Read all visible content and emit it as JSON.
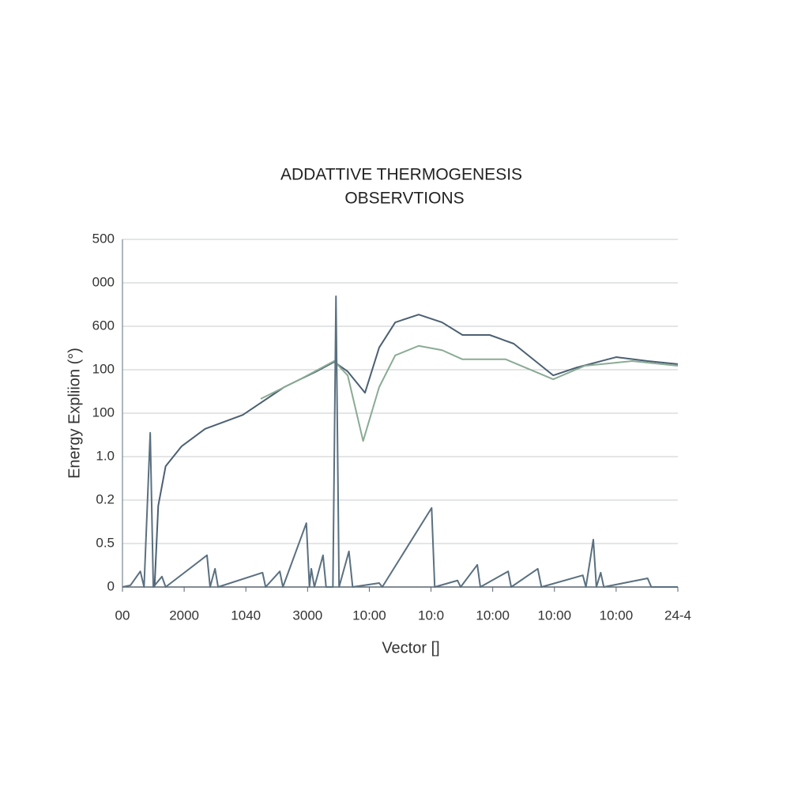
{
  "chart_data": {
    "type": "line",
    "title": [
      "ADDATTIVE THERMOGENESIS",
      "OBSERVTIONS"
    ],
    "x_label": "Vector []",
    "y_label": "Energy Expliion (°)",
    "xlim": [
      0,
      9
    ],
    "xticks": [
      {
        "value": 0,
        "label": "00"
      },
      {
        "value": 1,
        "label": "2000"
      },
      {
        "value": 2,
        "label": "1040"
      },
      {
        "value": 3,
        "label": "3000"
      },
      {
        "value": 4,
        "label": "10:00"
      },
      {
        "value": 5,
        "label": "10:0"
      },
      {
        "value": 6,
        "label": "10:00"
      },
      {
        "value": 7,
        "label": "10:00"
      },
      {
        "value": 8,
        "label": "10:00"
      },
      {
        "value": 9,
        "label": "24-4"
      }
    ],
    "ylim": [
      0,
      8
    ],
    "yticks": [
      0,
      {
        "value": 1,
        "label": "0.5"
      },
      {
        "value": 2,
        "label": "0.2"
      },
      {
        "value": 3,
        "label": "1.0"
      },
      {
        "value": 4,
        "label": "100"
      },
      {
        "value": 5,
        "label": "100"
      },
      {
        "value": 6,
        "label": "600"
      },
      {
        "value": 7,
        "label": "000"
      },
      {
        "value": 8,
        "label": "500"
      }
    ],
    "grid": true,
    "series": [
      {
        "color": "#4b6072",
        "x": [
          0.52,
          0.58,
          0.7,
          0.96,
          1.34,
          1.95,
          2.62,
          3.14,
          3.43,
          3.65,
          3.93,
          4.16,
          4.42,
          4.8,
          5.18,
          5.51,
          5.95,
          6.34,
          6.98,
          7.36,
          8.0,
          8.51,
          9.0
        ],
        "values": [
          0,
          1.87,
          2.78,
          3.24,
          3.64,
          3.96,
          4.6,
          4.96,
          5.18,
          4.96,
          4.47,
          5.51,
          6.09,
          6.27,
          6.09,
          5.8,
          5.8,
          5.6,
          4.87,
          5.05,
          5.29,
          5.2,
          5.13
        ]
      },
      {
        "color": "#8aab94",
        "x": [
          2.24,
          2.88,
          3.43,
          3.65,
          3.9,
          4.16,
          4.42,
          4.8,
          5.18,
          5.51,
          6.21,
          6.98,
          7.49,
          8.26,
          9.0
        ],
        "values": [
          4.33,
          4.78,
          5.2,
          4.87,
          3.36,
          4.6,
          5.33,
          5.55,
          5.45,
          5.24,
          5.24,
          4.78,
          5.09,
          5.2,
          5.09
        ]
      },
      {
        "color": "#5a7080",
        "x": [
          0,
          0.13,
          0.29,
          0.35,
          0.45,
          0.5,
          0.64,
          0.7,
          1.37,
          1.42,
          1.5,
          1.55,
          2.27,
          2.32,
          2.55,
          2.6,
          2.98,
          3.03,
          3.06,
          3.11,
          3.25,
          3.3,
          3.41,
          3.46,
          3.51,
          3.67,
          3.73,
          4.16,
          4.21,
          5.01,
          5.06,
          5.43,
          5.48,
          5.75,
          5.8,
          6.25,
          6.3,
          6.73,
          6.79,
          7.46,
          7.51,
          7.63,
          7.68,
          7.75,
          7.8,
          8.51,
          8.57,
          9
        ],
        "values": [
          0,
          0.04,
          0.36,
          0,
          3.55,
          0,
          0.24,
          0,
          0.73,
          0,
          0.42,
          0,
          0.33,
          0,
          0.36,
          0,
          1.47,
          0,
          0.42,
          0,
          0.73,
          0,
          0,
          6.69,
          0,
          0.82,
          0,
          0.09,
          0,
          1.82,
          0,
          0.15,
          0,
          0.51,
          0,
          0.36,
          0,
          0.42,
          0,
          0.27,
          0,
          1.09,
          0,
          0.33,
          0,
          0.2,
          0,
          0
        ]
      }
    ]
  }
}
